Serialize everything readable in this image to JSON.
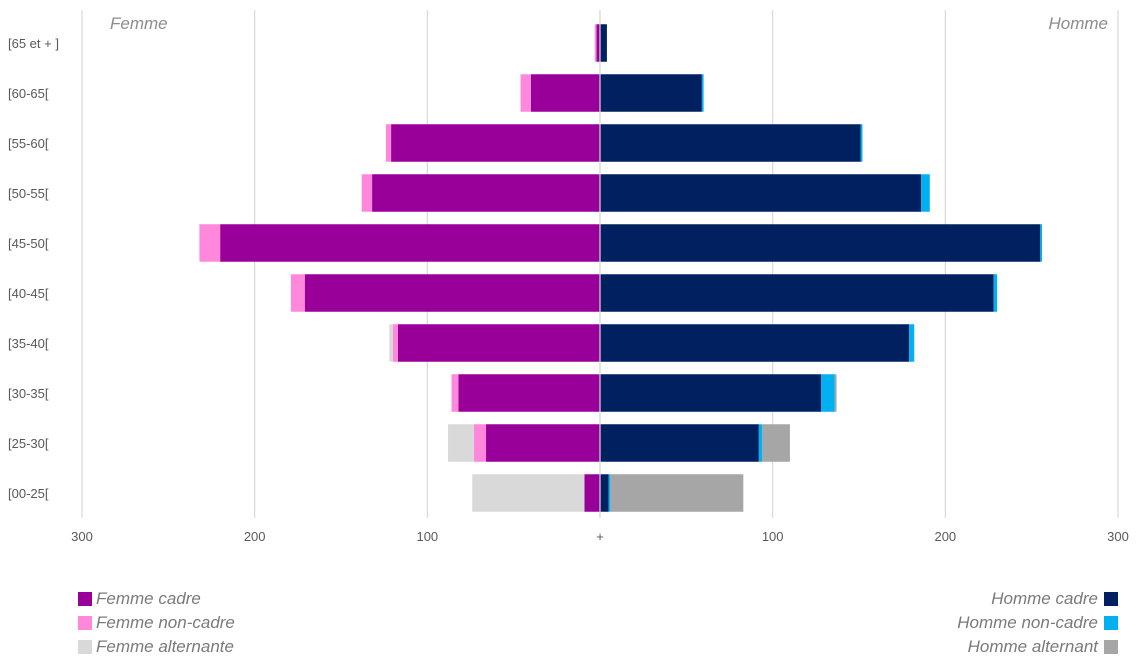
{
  "chart_data": {
    "type": "bar",
    "orientation": "horizontal-diverging",
    "left_title": "Femme",
    "right_title": "Homme",
    "categories": [
      "[00-25[",
      "[25-30[",
      "[30-35[",
      "[35-40[",
      "[40-45[",
      "[45-50[",
      "[50-55[",
      "[55-60[",
      "[60-65[",
      "[65 et + ]"
    ],
    "left_series": [
      {
        "name": "Femme cadre",
        "color": "#990099",
        "values": [
          9,
          66,
          82,
          117,
          171,
          220,
          132,
          121,
          40,
          2
        ]
      },
      {
        "name": "Femme non-cadre",
        "color": "#ff88dd",
        "values": [
          0,
          7,
          4,
          3,
          8,
          12,
          6,
          3,
          6,
          1
        ]
      },
      {
        "name": "Femme alternante",
        "color": "#d9d9d9",
        "values": [
          65,
          15,
          0,
          2,
          0,
          0,
          0,
          0,
          0,
          0
        ]
      }
    ],
    "right_series": [
      {
        "name": "Homme cadre",
        "color": "#002060",
        "values": [
          5,
          92,
          128,
          179,
          228,
          255,
          186,
          151,
          59,
          4
        ]
      },
      {
        "name": "Homme non-cadre",
        "color": "#00b0f0",
        "values": [
          1,
          2,
          8,
          3,
          2,
          1,
          5,
          1,
          1,
          0
        ]
      },
      {
        "name": "Homme alternant",
        "color": "#a6a6a6",
        "values": [
          77,
          16,
          1,
          0,
          0,
          0,
          0,
          0,
          0,
          0
        ]
      }
    ],
    "xlim": [
      -300,
      300
    ],
    "xticks": [
      -300,
      -200,
      -100,
      0,
      100,
      200,
      300
    ],
    "xtick_labels": [
      "300",
      "200",
      "100",
      "+",
      "100",
      "200",
      "300"
    ],
    "grid": "vertical",
    "legend": "bottom-left-and-bottom-right"
  }
}
